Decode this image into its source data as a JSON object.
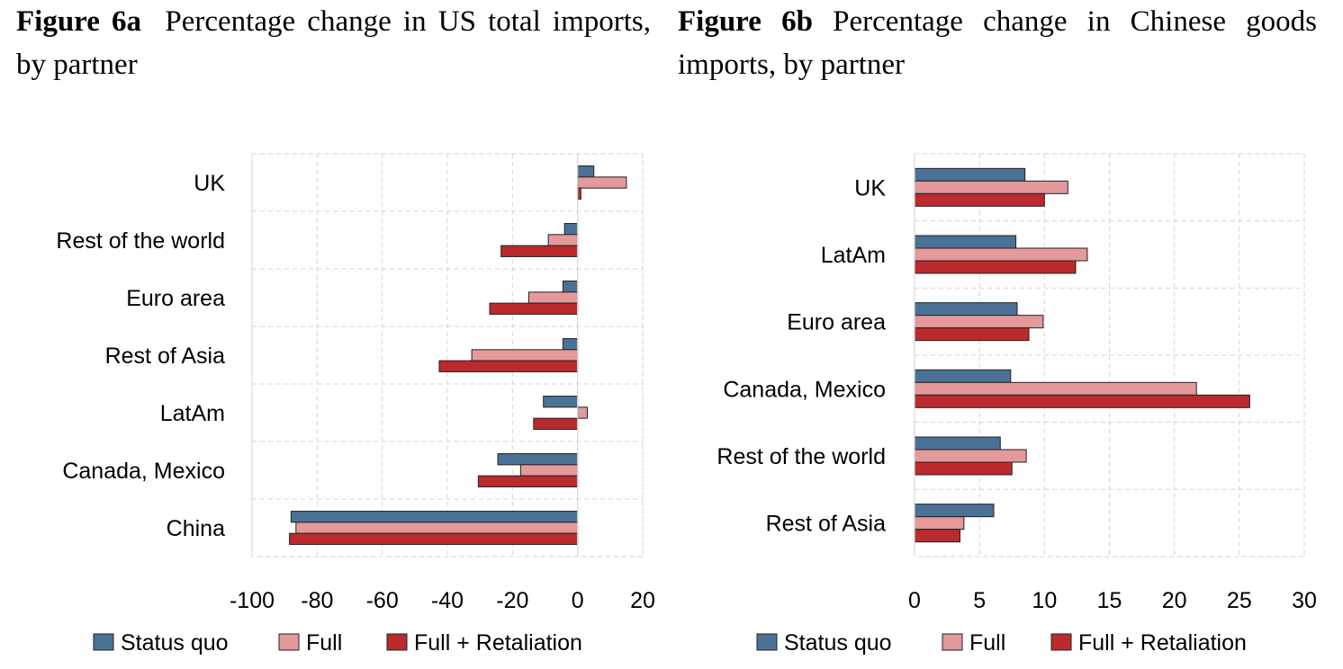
{
  "colors": {
    "status_quo": "#4a7296",
    "full": "#e4999a",
    "full_retaliation": "#bb2a2c",
    "bar_stroke": "#222222",
    "grid": "#d4d4d4"
  },
  "chart_data": [
    {
      "type": "bar",
      "orientation": "horizontal",
      "figure_label": "Figure 6a",
      "title": "Percentage change in US total imports, by partner",
      "categories": [
        "UK",
        "Rest of the world",
        "Euro area",
        "Rest of Asia",
        "LatAm",
        "Canada, Mexico",
        "China"
      ],
      "series": [
        {
          "name": "Status quo",
          "values": [
            5,
            -4,
            -4.5,
            -4.5,
            -10.5,
            -24.5,
            -88
          ]
        },
        {
          "name": "Full",
          "values": [
            15,
            -9,
            -15,
            -32.5,
            3,
            -17.5,
            -86.5
          ]
        },
        {
          "name": "Full + Retaliation",
          "values": [
            1,
            -23.5,
            -27,
            -42.5,
            -13.5,
            -30.5,
            -88.5
          ]
        }
      ],
      "xlim": [
        -100,
        20
      ],
      "xticks": [
        "-100",
        "-80",
        "-60",
        "-40",
        "-20",
        "0",
        "20"
      ],
      "legend": [
        "Status quo",
        "Full",
        "Full + Retaliation"
      ],
      "legend_position": "bottom",
      "grid": true
    },
    {
      "type": "bar",
      "orientation": "horizontal",
      "figure_label": "Figure 6b",
      "title": "Percentage change in Chinese goods imports, by partner",
      "categories": [
        "UK",
        "LatAm",
        "Euro area",
        "Canada, Mexico",
        "Rest of the world",
        "Rest of Asia"
      ],
      "series": [
        {
          "name": "Status quo",
          "values": [
            8.5,
            7.8,
            7.9,
            7.4,
            6.6,
            6.1
          ]
        },
        {
          "name": "Full",
          "values": [
            11.8,
            13.3,
            9.9,
            21.7,
            8.6,
            3.8
          ]
        },
        {
          "name": "Full + Retaliation",
          "values": [
            10,
            12.4,
            8.8,
            25.8,
            7.5,
            3.5
          ]
        }
      ],
      "xlim": [
        0,
        30
      ],
      "xticks": [
        "0",
        "5",
        "10",
        "15",
        "20",
        "25",
        "30"
      ],
      "legend": [
        "Status quo",
        "Full",
        "Full + Retaliation"
      ],
      "legend_position": "bottom",
      "grid": true
    }
  ]
}
